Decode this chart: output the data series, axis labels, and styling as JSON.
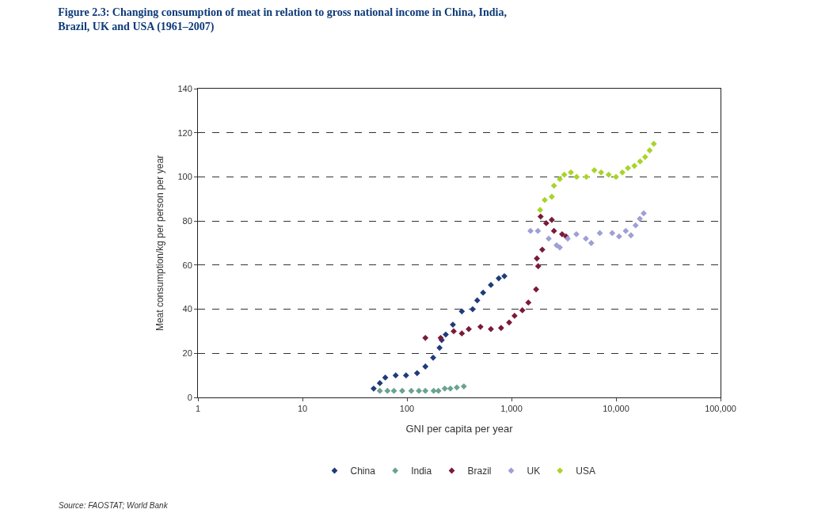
{
  "chart_data": {
    "type": "scatter",
    "title": "Figure 2.3: Changing consumption of meat in relation to gross national income in China, India, Brazil, UK and USA (1961–2007)",
    "xlabel": "GNI per capita per year",
    "ylabel": "Meat consumption/kg per person per year",
    "log": "x",
    "xlim": [
      1,
      100000
    ],
    "xticks": [
      1,
      10,
      100,
      {
        "value": 1000,
        "label": "1,000"
      },
      {
        "value": 10000,
        "label": "10,000"
      },
      {
        "value": 100000,
        "label": "100,000"
      }
    ],
    "ylim": [
      0,
      140
    ],
    "yticks": [
      0,
      20,
      40,
      60,
      80,
      100,
      120,
      140
    ],
    "grid": "y",
    "legend": "bottom",
    "marker": "diamond",
    "annotations": [
      "Source: FAOSTAT; World Bank"
    ],
    "series": [
      {
        "name": "China",
        "color": "#1f3c7a",
        "x": [
          48,
          55,
          62,
          78,
          98,
          125,
          150,
          178,
          205,
          215,
          235,
          275,
          335,
          425,
          470,
          535,
          635,
          755,
          855
        ],
        "values": [
          4,
          6.5,
          9,
          10,
          10,
          11,
          14,
          18,
          22.5,
          26,
          28.5,
          33,
          39,
          40,
          44,
          47.5,
          51,
          54,
          55
        ]
      },
      {
        "name": "India",
        "color": "#6aa391",
        "x": [
          55,
          65,
          75,
          90,
          110,
          130,
          150,
          180,
          200,
          230,
          260,
          300,
          350
        ],
        "values": [
          3,
          3,
          3,
          3,
          3,
          3,
          3,
          3,
          3,
          4,
          4,
          4.5,
          5
        ]
      },
      {
        "name": "Brazil",
        "color": "#7a1a3a",
        "x": [
          150,
          210,
          280,
          335,
          390,
          505,
          635,
          795,
          950,
          1070,
          1270,
          1450,
          1720,
          1800,
          1750,
          1970,
          1900,
          2150,
          2430,
          2550,
          3050,
          3330
        ],
        "values": [
          27,
          27,
          30,
          29,
          31,
          32,
          31,
          31.5,
          34,
          37,
          39.5,
          43,
          49,
          59.5,
          63,
          67,
          82,
          79,
          80.5,
          75.5,
          74,
          73
        ]
      },
      {
        "name": "UK",
        "color": "#9d9fd6",
        "x": [
          1520,
          1790,
          2270,
          2700,
          2900,
          3450,
          4180,
          5150,
          5800,
          7000,
          9200,
          10700,
          12400,
          13900,
          15400,
          16900,
          18400
        ],
        "values": [
          75.5,
          75.5,
          72,
          69,
          68,
          72,
          74,
          72,
          70,
          74.5,
          74.5,
          73,
          75.5,
          73.5,
          78,
          81,
          83.5
        ]
      },
      {
        "name": "USA",
        "color": "#a8d42a",
        "x": [
          1880,
          2080,
          2430,
          2550,
          2900,
          3200,
          3700,
          4200,
          5200,
          6200,
          7200,
          8500,
          10000,
          11500,
          13000,
          15000,
          17000,
          19000,
          21000,
          23000
        ],
        "values": [
          85,
          89.5,
          91,
          96,
          99,
          101,
          102,
          100,
          100,
          103,
          102,
          101,
          100,
          102,
          104,
          105,
          107,
          109,
          112,
          115
        ]
      }
    ]
  }
}
